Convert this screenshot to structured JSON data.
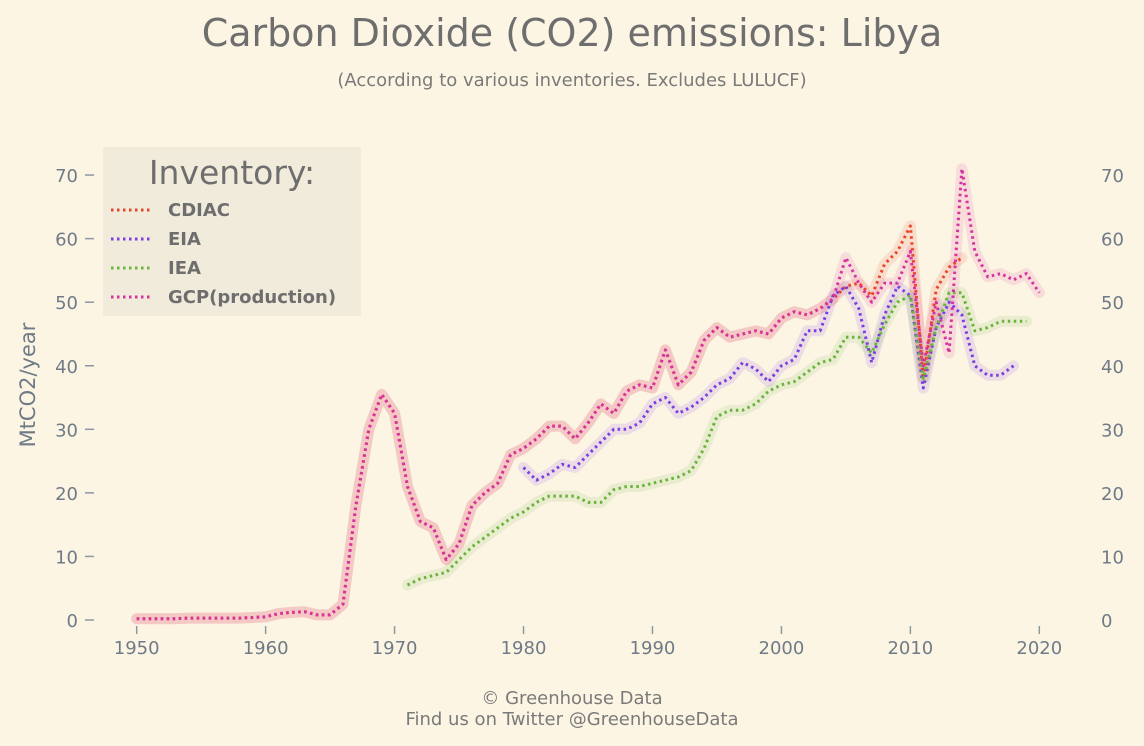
{
  "chart_data": {
    "type": "line",
    "title": "Carbon Dioxide (CO2) emissions: Libya",
    "subtitle": "(According to various inventories. Excludes LULUCF)",
    "ylabel": "MtCO2/year",
    "xlabel": "",
    "xlim": [
      1947,
      2023
    ],
    "ylim": [
      0,
      73
    ],
    "xticks": [
      1950,
      1960,
      1970,
      1980,
      1990,
      2000,
      2010,
      2020
    ],
    "yticks": [
      0,
      10,
      20,
      30,
      40,
      50,
      60,
      70
    ],
    "grid": false,
    "legend": {
      "title": "Inventory:",
      "placement": "top-left"
    },
    "footer": [
      "© Greenhouse Data",
      "Find us on Twitter @GreenhouseData"
    ],
    "series": [
      {
        "name": "CDIAC",
        "color": "#e8452c",
        "x": [
          1950,
          1951,
          1952,
          1953,
          1954,
          1955,
          1956,
          1957,
          1958,
          1959,
          1960,
          1961,
          1962,
          1963,
          1964,
          1965,
          1966,
          1967,
          1968,
          1969,
          1970,
          1971,
          1972,
          1973,
          1974,
          1975,
          1976,
          1977,
          1978,
          1979,
          1980,
          1981,
          1982,
          1983,
          1984,
          1985,
          1986,
          1987,
          1988,
          1989,
          1990,
          1991,
          1992,
          1993,
          1994,
          1995,
          1996,
          1997,
          1998,
          1999,
          2000,
          2001,
          2002,
          2003,
          2004,
          2005,
          2006,
          2007,
          2008,
          2009,
          2010,
          2011,
          2012,
          2013,
          2014
        ],
        "y": [
          0.2,
          0.2,
          0.2,
          0.2,
          0.3,
          0.3,
          0.3,
          0.3,
          0.3,
          0.4,
          0.5,
          1.0,
          1.2,
          1.3,
          0.8,
          0.8,
          2.5,
          18,
          30,
          35.5,
          32.5,
          21,
          15.5,
          14.5,
          9.5,
          12,
          18,
          20,
          21.5,
          26,
          27,
          28.5,
          30.5,
          30.5,
          28.5,
          31,
          34,
          32.5,
          36,
          37,
          36.5,
          42.5,
          37,
          39,
          44,
          46,
          44.5,
          45,
          45.5,
          45,
          47.5,
          48.5,
          48,
          49,
          50.5,
          52.5,
          53,
          51,
          56,
          58,
          62,
          38,
          52,
          55.5,
          57
        ]
      },
      {
        "name": "EIA",
        "color": "#7b3fe0",
        "x": [
          1980,
          1981,
          1982,
          1983,
          1984,
          1985,
          1986,
          1987,
          1988,
          1989,
          1990,
          1991,
          1992,
          1993,
          1994,
          1995,
          1996,
          1997,
          1998,
          1999,
          2000,
          2001,
          2002,
          2003,
          2004,
          2005,
          2006,
          2007,
          2008,
          2009,
          2010,
          2011,
          2012,
          2013,
          2014,
          2015,
          2016,
          2017,
          2018
        ],
        "y": [
          24,
          22,
          23,
          24.5,
          24,
          26,
          28,
          30,
          30,
          31,
          34,
          35,
          32.5,
          33.5,
          35,
          37,
          38,
          40.5,
          39.5,
          37.5,
          40,
          41,
          45.5,
          45.5,
          51,
          52.5,
          49,
          40.5,
          48,
          52.5,
          51,
          36.5,
          46,
          50,
          48,
          40,
          38.5,
          38.5,
          40
        ]
      },
      {
        "name": "IEA",
        "color": "#6ab43e",
        "x": [
          1971,
          1972,
          1973,
          1974,
          1975,
          1976,
          1977,
          1978,
          1979,
          1980,
          1981,
          1982,
          1983,
          1984,
          1985,
          1986,
          1987,
          1988,
          1989,
          1990,
          1991,
          1992,
          1993,
          1994,
          1995,
          1996,
          1997,
          1998,
          1999,
          2000,
          2001,
          2002,
          2003,
          2004,
          2005,
          2006,
          2007,
          2008,
          2009,
          2010,
          2011,
          2012,
          2013,
          2014,
          2015,
          2016,
          2017,
          2018,
          2019
        ],
        "y": [
          5.5,
          6.5,
          7,
          7.5,
          9.5,
          11.5,
          13,
          14.5,
          16,
          17,
          18.5,
          19.5,
          19.5,
          19.5,
          18.5,
          18.5,
          20.5,
          21,
          21,
          21.5,
          22,
          22.5,
          23.5,
          27,
          32,
          33,
          33,
          34,
          36,
          37,
          37.5,
          39,
          40.5,
          41,
          44.5,
          44.5,
          42,
          46.5,
          50,
          51,
          38,
          46,
          51.5,
          51.5,
          45.5,
          46,
          47,
          47,
          47
        ]
      },
      {
        "name": "GCP(production)",
        "color": "#d6339e",
        "x": [
          1950,
          1951,
          1952,
          1953,
          1954,
          1955,
          1956,
          1957,
          1958,
          1959,
          1960,
          1961,
          1962,
          1963,
          1964,
          1965,
          1966,
          1967,
          1968,
          1969,
          1970,
          1971,
          1972,
          1973,
          1974,
          1975,
          1976,
          1977,
          1978,
          1979,
          1980,
          1981,
          1982,
          1983,
          1984,
          1985,
          1986,
          1987,
          1988,
          1989,
          1990,
          1991,
          1992,
          1993,
          1994,
          1995,
          1996,
          1997,
          1998,
          1999,
          2000,
          2001,
          2002,
          2003,
          2004,
          2005,
          2006,
          2007,
          2008,
          2009,
          2010,
          2011,
          2012,
          2013,
          2014,
          2015,
          2016,
          2017,
          2018,
          2019,
          2020
        ],
        "y": [
          0.2,
          0.2,
          0.2,
          0.2,
          0.3,
          0.3,
          0.3,
          0.3,
          0.3,
          0.4,
          0.5,
          1.0,
          1.2,
          1.3,
          0.8,
          0.8,
          2.5,
          18,
          30,
          35.5,
          32.5,
          21,
          15.5,
          14.5,
          9.5,
          12,
          18,
          20,
          21.5,
          26,
          27,
          28.5,
          30.5,
          30.5,
          28.5,
          31,
          34,
          32.5,
          36,
          37,
          36.5,
          42.5,
          37,
          39,
          44,
          46,
          44.5,
          45,
          45.5,
          45,
          47.5,
          48.5,
          48,
          49,
          50.5,
          57,
          53,
          50,
          53,
          53,
          58,
          40,
          50,
          42,
          71,
          58,
          54,
          54.5,
          53.5,
          54.5,
          51.5
        ]
      }
    ]
  }
}
